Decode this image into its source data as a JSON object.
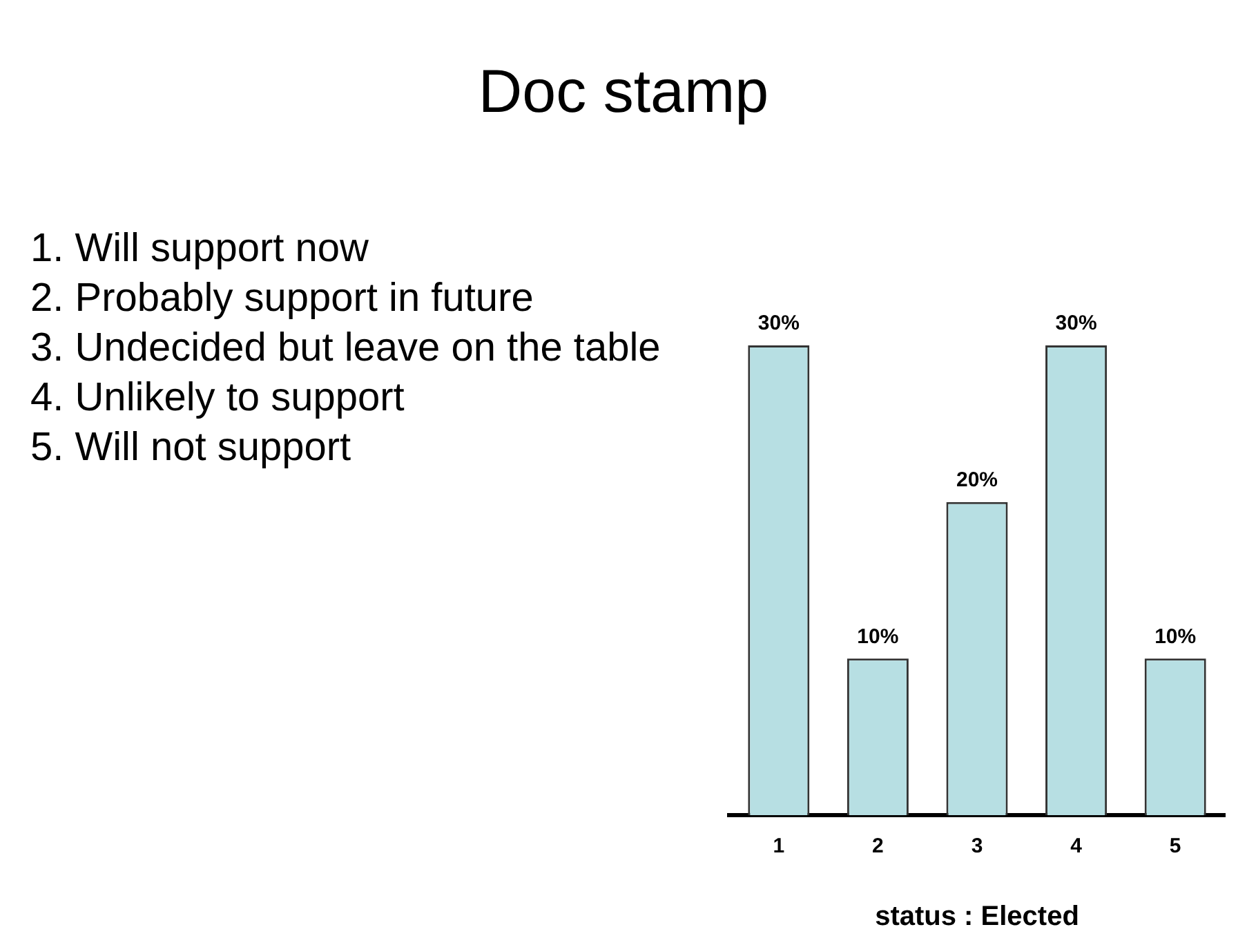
{
  "chart_data": {
    "type": "bar",
    "title": "Doc stamp",
    "xlabel": "status : Elected",
    "annotations": [
      "1. Will support now",
      "2. Probably support in future",
      "3. Undecided but leave on the table",
      "4. Unlikely to support",
      "5. Will not support"
    ],
    "categories": [
      "1",
      "2",
      "3",
      "4",
      "5"
    ],
    "values": [
      30,
      10,
      20,
      30,
      10
    ],
    "value_labels": [
      "30%",
      "10%",
      "20%",
      "30%",
      "10%"
    ],
    "color": "#b7dfe3",
    "grid": false,
    "legend": false
  }
}
